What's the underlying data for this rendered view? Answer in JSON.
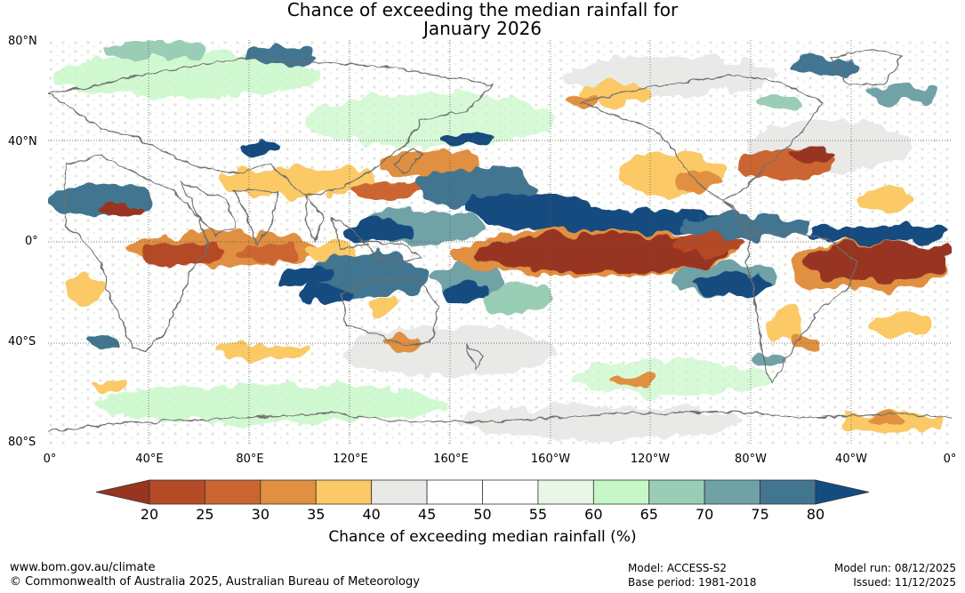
{
  "title": {
    "line1": "Chance of exceeding the median rainfall for",
    "line2": "January 2026"
  },
  "axes": {
    "lat_labels": [
      "80°N",
      "40°N",
      "0°",
      "40°S",
      "80°S"
    ],
    "lon_labels": [
      "0°",
      "40°E",
      "80°E",
      "120°E",
      "160°E",
      "160°W",
      "120°W",
      "80°W",
      "40°W",
      "0°"
    ]
  },
  "colorbar": {
    "ticks": [
      "20",
      "25",
      "30",
      "35",
      "40",
      "45",
      "50",
      "55",
      "60",
      "65",
      "70",
      "75",
      "80"
    ],
    "label": "Chance of exceeding median rainfall (%)",
    "colors": {
      "below20": "#983520",
      "c20_25": "#b44a26",
      "c25_30": "#cb6630",
      "c30_35": "#e09040",
      "c35_40": "#fbc965",
      "c40_45": "#e9e9e7",
      "c45_50": "#ffffff",
      "c50_55": "#ffffff",
      "c55_60": "#e8f7e6",
      "c60_65": "#c6f7c6",
      "c65_70": "#9acdb5",
      "c70_75": "#6fa2a6",
      "c75_80": "#427590",
      "above80": "#154c80"
    }
  },
  "footer": {
    "url": "www.bom.gov.au/climate",
    "copyright": "© Commonwealth of Australia 2025, Australian Bureau of Meteorology",
    "model": "Model: ACCESS-S2",
    "base_period": "Base period: 1981-2018",
    "model_run": "Model run: 08/12/2025",
    "issued": "Issued: 11/12/2025"
  }
}
